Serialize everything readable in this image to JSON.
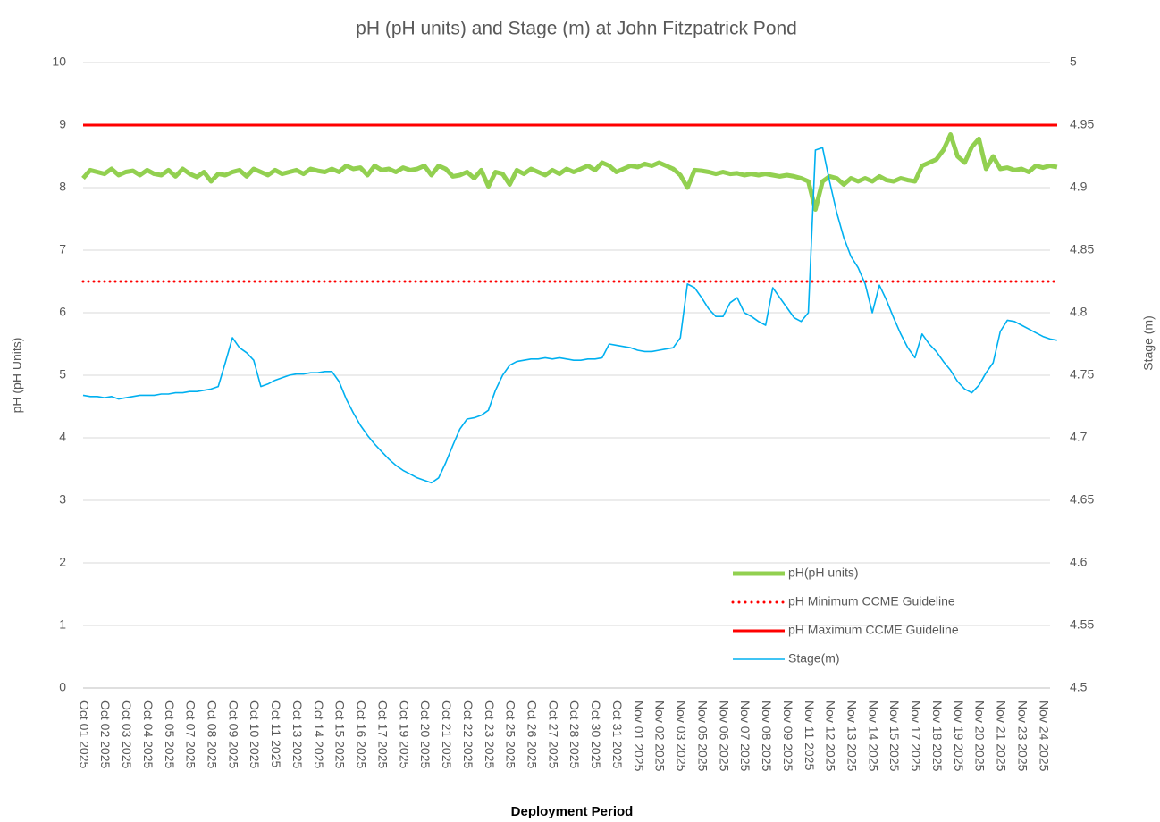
{
  "chart_data": {
    "type": "line",
    "title": "pH (pH units) and Stage (m) at John Fitzpatrick Pond",
    "x_label": "Deployment Period",
    "y_label": "pH (pH Units)",
    "y2_label": "Stage (m)",
    "categories": [
      "Oct 01 2025",
      null,
      null,
      "Oct 02 2025",
      null,
      null,
      "Oct 03 2025",
      null,
      null,
      "Oct 04 2025",
      null,
      null,
      "Oct 05 2025",
      null,
      null,
      "Oct 07 2025",
      null,
      null,
      "Oct 08 2025",
      null,
      null,
      "Oct 09 2025",
      null,
      null,
      "Oct 10 2025",
      null,
      null,
      "Oct 11 2025",
      null,
      null,
      "Oct 13 2025",
      null,
      null,
      "Oct 14 2025",
      null,
      null,
      "Oct 15 2025",
      null,
      null,
      "Oct 16 2025",
      null,
      null,
      "Oct 17 2025",
      null,
      null,
      "Oct 19 2025",
      null,
      null,
      "Oct 20 2025",
      null,
      null,
      "Oct 21 2025",
      null,
      null,
      "Oct 22 2025",
      null,
      null,
      "Oct 23 2025",
      null,
      null,
      "Oct 25 2025",
      null,
      null,
      "Oct 26 2025",
      null,
      null,
      "Oct 27 2025",
      null,
      null,
      "Oct 28 2025",
      null,
      null,
      "Oct 30 2025",
      null,
      null,
      "Oct 31 2025",
      null,
      null,
      "Nov 01 2025",
      null,
      null,
      "Nov 02 2025",
      null,
      null,
      "Nov 03 2025",
      null,
      null,
      "Nov 05 2025",
      null,
      null,
      "Nov 06 2025",
      null,
      null,
      "Nov 07 2025",
      null,
      null,
      "Nov 08 2025",
      null,
      null,
      "Nov 09 2025",
      null,
      null,
      "Nov 11 2025",
      null,
      null,
      "Nov 12 2025",
      null,
      null,
      "Nov 13 2025",
      null,
      null,
      "Nov 14 2025",
      null,
      null,
      "Nov 15 2025",
      null,
      null,
      "Nov 17 2025",
      null,
      null,
      "Nov 18 2025",
      null,
      null,
      "Nov 19 2025",
      null,
      null,
      "Nov 20 2025",
      null,
      null,
      "Nov 21 2025",
      null,
      null,
      "Nov 23 2025",
      null,
      null,
      "Nov 24 2025",
      null,
      null
    ],
    "series": [
      {
        "name": "pH(pH units)",
        "color": "#92d050",
        "width": 5,
        "values": [
          8.15,
          8.28,
          8.25,
          8.22,
          8.3,
          8.2,
          8.25,
          8.27,
          8.2,
          8.28,
          8.22,
          8.2,
          8.28,
          8.18,
          8.3,
          8.22,
          8.17,
          8.25,
          8.1,
          8.22,
          8.2,
          8.25,
          8.28,
          8.18,
          8.3,
          8.25,
          8.2,
          8.28,
          8.22,
          8.25,
          8.28,
          8.22,
          8.3,
          8.27,
          8.25,
          8.3,
          8.25,
          8.35,
          8.3,
          8.32,
          8.2,
          8.35,
          8.28,
          8.3,
          8.25,
          8.32,
          8.28,
          8.3,
          8.35,
          8.2,
          8.35,
          8.3,
          8.18,
          8.2,
          8.25,
          8.15,
          8.28,
          8.02,
          8.25,
          8.22,
          8.05,
          8.28,
          8.22,
          8.3,
          8.25,
          8.2,
          8.28,
          8.22,
          8.3,
          8.25,
          8.3,
          8.35,
          8.28,
          8.4,
          8.35,
          8.25,
          8.3,
          8.35,
          8.33,
          8.38,
          8.35,
          8.4,
          8.35,
          8.3,
          8.2,
          8.0,
          8.28,
          8.27,
          8.25,
          8.22,
          8.25,
          8.22,
          8.23,
          8.2,
          8.22,
          8.2,
          8.22,
          8.2,
          8.18,
          8.2,
          8.18,
          8.15,
          8.1,
          7.65,
          8.1,
          8.18,
          8.15,
          8.05,
          8.15,
          8.1,
          8.15,
          8.1,
          8.18,
          8.12,
          8.1,
          8.15,
          8.12,
          8.1,
          8.35,
          8.4,
          8.45,
          8.6,
          8.85,
          8.5,
          8.4,
          8.65,
          8.78,
          8.3,
          8.5,
          8.3,
          8.32,
          8.28,
          8.3,
          8.25,
          8.35,
          8.32,
          8.35,
          8.33
        ]
      },
      {
        "name": "pH Minimum CCME Guideline",
        "color": "#ff0000",
        "width": 3,
        "dotted": true,
        "value": 6.5
      },
      {
        "name": "pH Maximum CCME Guideline",
        "color": "#ff0000",
        "width": 3,
        "value": 9
      },
      {
        "name": "Stage(m)",
        "color": "#00b0f0",
        "width": 1.6,
        "axis": "y2",
        "values": [
          4.734,
          4.733,
          4.733,
          4.732,
          4.733,
          4.731,
          4.732,
          4.733,
          4.734,
          4.734,
          4.734,
          4.735,
          4.735,
          4.736,
          4.736,
          4.737,
          4.737,
          4.738,
          4.739,
          4.741,
          4.76,
          4.78,
          4.772,
          4.768,
          4.762,
          4.741,
          4.743,
          4.746,
          4.748,
          4.75,
          4.751,
          4.751,
          4.752,
          4.752,
          4.753,
          4.753,
          4.745,
          4.731,
          4.72,
          4.71,
          4.702,
          4.695,
          4.689,
          4.683,
          4.678,
          4.674,
          4.671,
          4.668,
          4.666,
          4.664,
          4.668,
          4.68,
          4.694,
          4.707,
          4.715,
          4.716,
          4.718,
          4.722,
          4.738,
          4.75,
          4.758,
          4.761,
          4.762,
          4.763,
          4.763,
          4.764,
          4.763,
          4.764,
          4.763,
          4.762,
          4.762,
          4.763,
          4.763,
          4.764,
          4.775,
          4.774,
          4.773,
          4.772,
          4.77,
          4.769,
          4.769,
          4.77,
          4.771,
          4.772,
          4.78,
          4.823,
          4.82,
          4.812,
          4.803,
          4.797,
          4.797,
          4.808,
          4.812,
          4.8,
          4.797,
          4.793,
          4.79,
          4.82,
          4.812,
          4.804,
          4.796,
          4.793,
          4.8,
          4.93,
          4.932,
          4.905,
          4.88,
          4.86,
          4.845,
          4.836,
          4.823,
          4.8,
          4.822,
          4.81,
          4.796,
          4.783,
          4.772,
          4.764,
          4.783,
          4.775,
          4.769,
          4.761,
          4.754,
          4.745,
          4.739,
          4.736,
          4.742,
          4.752,
          4.76,
          4.785,
          4.794,
          4.793,
          4.79,
          4.787,
          4.784,
          4.781,
          4.779,
          4.778
        ]
      }
    ],
    "ylim": [
      0,
      10
    ],
    "yticks": [
      0,
      1,
      2,
      3,
      4,
      5,
      6,
      7,
      8,
      9,
      10
    ],
    "y2lim": [
      4.5,
      5
    ],
    "y2ticks": [
      4.5,
      4.55,
      4.6,
      4.65,
      4.7,
      4.75,
      4.8,
      4.85,
      4.9,
      4.95,
      5
    ],
    "grid": true,
    "legend": "bottom-right"
  }
}
